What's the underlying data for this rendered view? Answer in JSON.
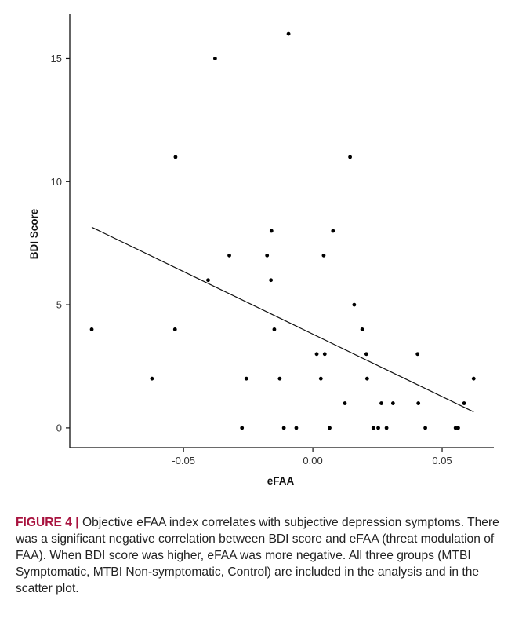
{
  "caption": {
    "label": "FIGURE 4 |",
    "text": "Objective eFAA index correlates with subjective depression symptoms. There was a significant negative correlation between BDI score and eFAA (threat modulation of FAA). When BDI score was higher, eFAA was more negative. All three groups (MTBI Symptomatic, MTBI Non-symptomatic, Control) are included in the analysis and in the scatter plot."
  },
  "chart_data": {
    "type": "scatter",
    "xlabel": "eFAA",
    "ylabel": "BDI Score",
    "xlim": [
      -0.094,
      0.07
    ],
    "ylim": [
      -0.8,
      16.8
    ],
    "x_ticks": [
      {
        "value": -0.05,
        "label": "-0.05"
      },
      {
        "value": 0.0,
        "label": "0.00"
      },
      {
        "value": 0.05,
        "label": "0.05"
      }
    ],
    "y_ticks": [
      {
        "value": 0,
        "label": "0"
      },
      {
        "value": 5,
        "label": "5"
      },
      {
        "value": 10,
        "label": "10"
      },
      {
        "value": 15,
        "label": "15"
      }
    ],
    "grid": false,
    "points": [
      {
        "x": -0.0855,
        "y": 4
      },
      {
        "x": -0.0622,
        "y": 2
      },
      {
        "x": -0.0531,
        "y": 11
      },
      {
        "x": -0.0533,
        "y": 4
      },
      {
        "x": -0.0405,
        "y": 6
      },
      {
        "x": -0.0378,
        "y": 15
      },
      {
        "x": -0.0323,
        "y": 7
      },
      {
        "x": -0.0274,
        "y": 0
      },
      {
        "x": -0.0257,
        "y": 2
      },
      {
        "x": -0.0177,
        "y": 7
      },
      {
        "x": -0.016,
        "y": 8
      },
      {
        "x": -0.0162,
        "y": 6
      },
      {
        "x": -0.0149,
        "y": 4
      },
      {
        "x": -0.0128,
        "y": 2
      },
      {
        "x": -0.0112,
        "y": 0
      },
      {
        "x": -0.0094,
        "y": 16
      },
      {
        "x": -0.0064,
        "y": 0
      },
      {
        "x": 0.0015,
        "y": 3
      },
      {
        "x": 0.0031,
        "y": 2
      },
      {
        "x": 0.0042,
        "y": 7
      },
      {
        "x": 0.0046,
        "y": 3
      },
      {
        "x": 0.0065,
        "y": 0
      },
      {
        "x": 0.0078,
        "y": 8
      },
      {
        "x": 0.0124,
        "y": 1
      },
      {
        "x": 0.0144,
        "y": 11
      },
      {
        "x": 0.016,
        "y": 5
      },
      {
        "x": 0.0191,
        "y": 4
      },
      {
        "x": 0.0207,
        "y": 3
      },
      {
        "x": 0.021,
        "y": 2
      },
      {
        "x": 0.0234,
        "y": 0
      },
      {
        "x": 0.0253,
        "y": 0
      },
      {
        "x": 0.0265,
        "y": 1
      },
      {
        "x": 0.0285,
        "y": 0
      },
      {
        "x": 0.031,
        "y": 1
      },
      {
        "x": 0.0405,
        "y": 3
      },
      {
        "x": 0.0408,
        "y": 1
      },
      {
        "x": 0.0435,
        "y": 0
      },
      {
        "x": 0.0552,
        "y": 0
      },
      {
        "x": 0.0562,
        "y": 0
      },
      {
        "x": 0.0585,
        "y": 1
      },
      {
        "x": 0.0622,
        "y": 2
      }
    ],
    "regression_line": {
      "x": [
        -0.0855,
        0.0622
      ],
      "y": [
        8.15,
        0.65
      ]
    },
    "legend": "none",
    "title": ""
  }
}
